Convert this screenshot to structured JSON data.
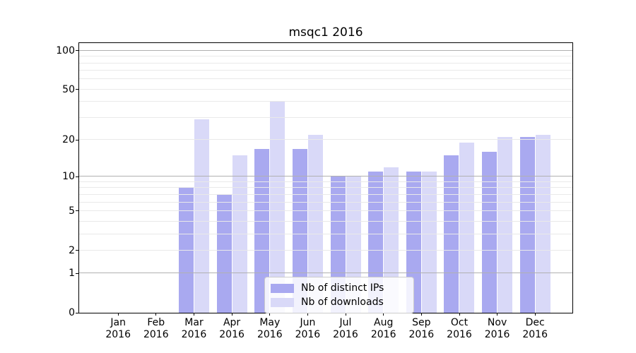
{
  "title": "msqc1 2016",
  "chart_data": {
    "type": "bar",
    "title": "msqc1 2016",
    "categories": [
      "Jan",
      "Feb",
      "Mar",
      "Apr",
      "May",
      "Jun",
      "Jul",
      "Aug",
      "Sep",
      "Oct",
      "Nov",
      "Dec"
    ],
    "category_year": "2016",
    "series": [
      {
        "name": "Nb of distinct IPs",
        "color": "#a9a9f0",
        "values": [
          0,
          0,
          8,
          7,
          17,
          17,
          10,
          11,
          11,
          15,
          16,
          21
        ]
      },
      {
        "name": "Nb of downloads",
        "color": "#d9d9f8",
        "values": [
          0,
          0,
          29,
          15,
          40,
          22,
          10,
          12,
          11,
          19,
          21,
          22
        ]
      }
    ],
    "yscale": "log10(1+v)",
    "ylim": [
      0,
      114
    ],
    "y_tick_labels": [
      "100",
      "50",
      "20",
      "10",
      "5",
      "2",
      "1",
      "0"
    ],
    "y_tick_values": [
      100,
      50,
      20,
      10,
      5,
      2,
      1,
      0
    ],
    "y_major_gridlines": [
      1,
      10,
      100
    ],
    "y_minor_gridlines": [
      2,
      3,
      4,
      5,
      6,
      7,
      8,
      9,
      20,
      30,
      40,
      50,
      60,
      70,
      80,
      90
    ],
    "grid": "on",
    "legend_position": "lower center",
    "xlabel": "",
    "ylabel": ""
  },
  "colors": {
    "background": "#ffffff",
    "spine": "#000000",
    "grid_major": "#b0b0b0",
    "grid_minor": "#e9e9e9",
    "text": "#000000",
    "legend_border": "#cccccc",
    "legend_bg": "#ffffff"
  }
}
